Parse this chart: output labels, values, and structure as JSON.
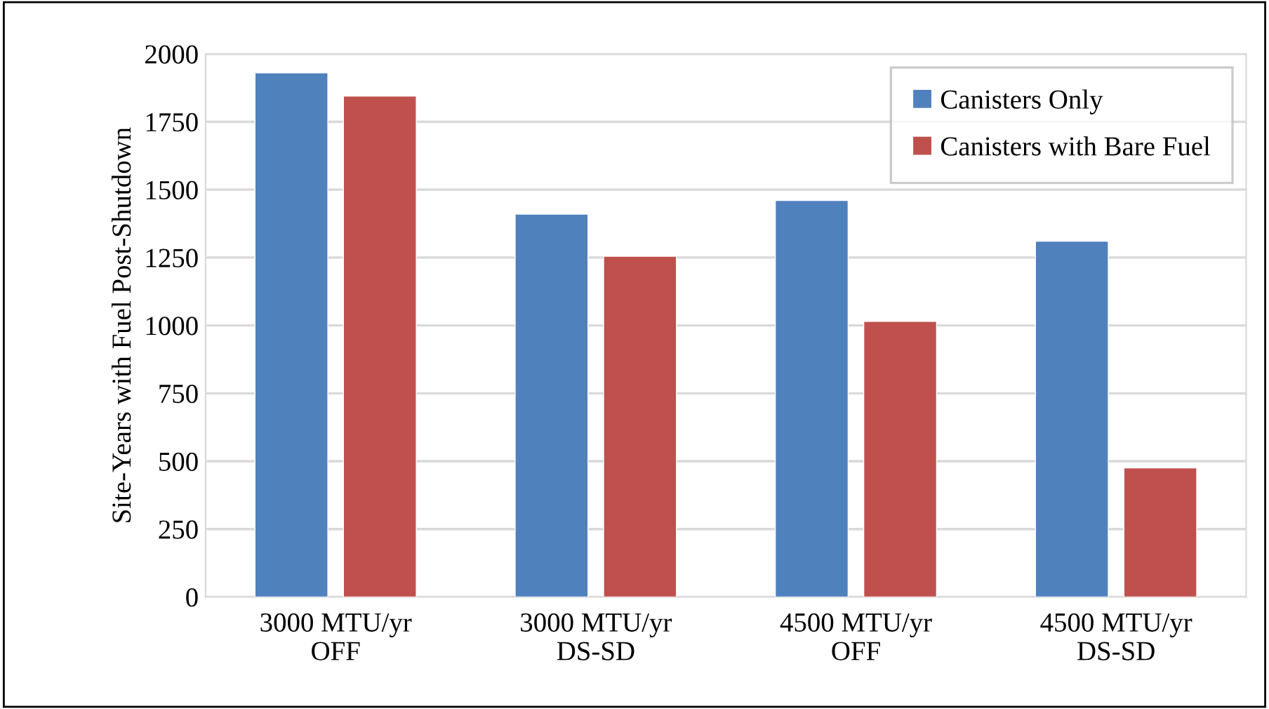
{
  "chart_data": {
    "type": "bar",
    "ylabel": "Site-Years with Fuel Post-Shutdown",
    "categories": [
      "3000 MTU/yr\nOFF",
      "3000 MTU/yr\nDS-SD",
      "4500 MTU/yr\nOFF",
      "4500 MTU/yr\nDS-SD"
    ],
    "series": [
      {
        "name": "Canisters Only",
        "color": "#4f81bd",
        "values": [
          1930,
          1410,
          1460,
          1310
        ]
      },
      {
        "name": "Canisters with Bare Fuel",
        "color": "#c0504d",
        "values": [
          1845,
          1255,
          1015,
          475
        ]
      }
    ],
    "ylim": [
      0,
      2000
    ],
    "yticks": [
      0,
      250,
      500,
      750,
      1000,
      1250,
      1500,
      1750,
      2000
    ],
    "grid": "y",
    "legend": "top right"
  }
}
